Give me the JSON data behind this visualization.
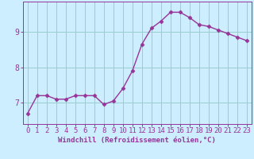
{
  "x": [
    0,
    1,
    2,
    3,
    4,
    5,
    6,
    7,
    8,
    9,
    10,
    11,
    12,
    13,
    14,
    15,
    16,
    17,
    18,
    19,
    20,
    21,
    22,
    23
  ],
  "y": [
    6.7,
    7.2,
    7.2,
    7.1,
    7.1,
    7.2,
    7.2,
    7.2,
    6.95,
    7.05,
    7.4,
    7.9,
    8.65,
    9.1,
    9.3,
    9.55,
    9.55,
    9.4,
    9.2,
    9.15,
    9.05,
    8.95,
    8.85,
    8.75
  ],
  "line_color": "#993399",
  "marker": "D",
  "marker_size": 2.5,
  "bg_color": "#cceeff",
  "grid_color": "#99cccc",
  "xlabel": "Windchill (Refroidissement éolien,°C)",
  "xlim": [
    -0.5,
    23.5
  ],
  "ylim": [
    6.4,
    9.85
  ],
  "yticks": [
    7,
    8,
    9
  ],
  "xticks": [
    0,
    1,
    2,
    3,
    4,
    5,
    6,
    7,
    8,
    9,
    10,
    11,
    12,
    13,
    14,
    15,
    16,
    17,
    18,
    19,
    20,
    21,
    22,
    23
  ],
  "xlabel_fontsize": 6.5,
  "tick_fontsize": 6.5,
  "line_width": 1.0
}
